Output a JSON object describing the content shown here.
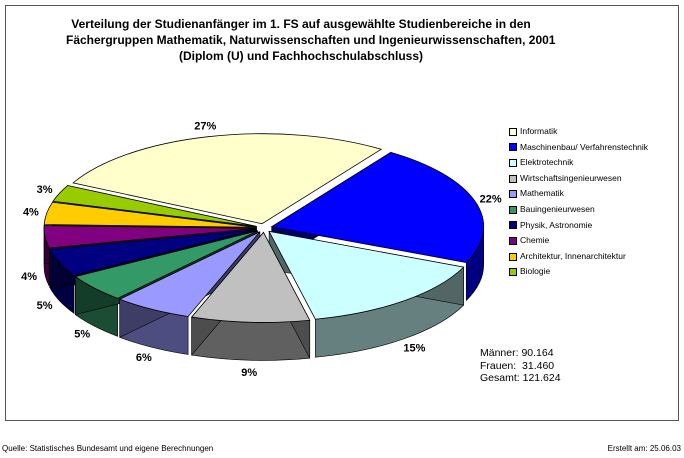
{
  "chart_data": {
    "type": "pie",
    "title_lines": [
      "Verteilung der Studienanfänger im 1. FS auf ausgewählte Studienbereiche in den",
      "Fächergruppen Mathematik, Naturwissenschaften und Ingenieurwissenschaften, 2001",
      "(Diplom (U) und Fachhochschulabschluss)"
    ],
    "categories": [
      "Informatik",
      "Maschinenbau/ Verfahrenstechnik",
      "Elektrotechnik",
      "Wirtschaftsingenieurwesen",
      "Mathematik",
      "Bauingenieurwesen",
      "Physik, Astronomie",
      "Chemie",
      "Architektur, Innenarchitektur",
      "Biologie"
    ],
    "values": [
      27,
      22,
      15,
      9,
      6,
      5,
      5,
      4,
      4,
      3
    ],
    "value_labels": [
      "27%",
      "22%",
      "15%",
      "9%",
      "6%",
      "5%",
      "5%",
      "4%",
      "4%",
      "3%"
    ],
    "colors": [
      "#FFFFCC",
      "#0000FF",
      "#CCFFFF",
      "#C0C0C0",
      "#9999FF",
      "#339966",
      "#000080",
      "#800080",
      "#FFCC00",
      "#99CC00"
    ],
    "exploded": true,
    "style": "3d",
    "legend_position": "right"
  },
  "totals": [
    {
      "label": "Männer:",
      "value": "90.164"
    },
    {
      "label": "Frauen:",
      "value": "31.460"
    },
    {
      "label": "Gesamt:",
      "value": "121.624"
    }
  ],
  "footer": {
    "source": "Quelle: Statistisches Bundesamt und eigene Berechnungen",
    "created": "Erstellt am: 25.06.03"
  }
}
